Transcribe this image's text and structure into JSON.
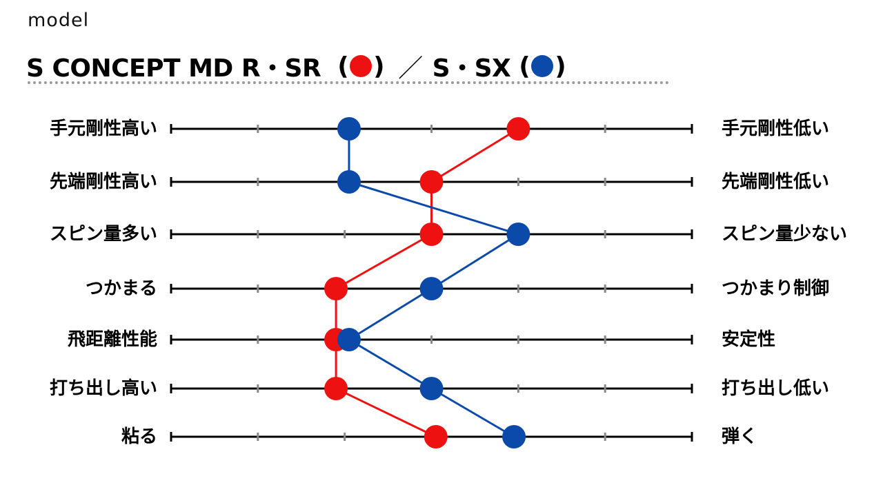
{
  "header": {
    "model_label": "model",
    "title_part1": "S CONCEPT MD R・SR",
    "title_part2": "S・SX",
    "open_paren": "(",
    "close_paren": ")",
    "slash": "／"
  },
  "chart_data": {
    "type": "line",
    "scale_steps": 7,
    "colors": {
      "S CONCEPT MD R・SR": "#ee1111",
      "S・SX": "#0b4aa8"
    },
    "rows": [
      {
        "left": "手元剛性高い",
        "right": "手元剛性低い"
      },
      {
        "left": "先端剛性高い",
        "right": "先端剛性低い"
      },
      {
        "left": "スピン量多い",
        "right": "スピン量少ない"
      },
      {
        "left": "つかまる",
        "right": "つかまり制御"
      },
      {
        "left": "飛距離性能",
        "right": "安定性"
      },
      {
        "left": "打ち出し高い",
        "right": "打ち出し低い"
      },
      {
        "left": "粘る",
        "right": "弾く"
      }
    ],
    "series": [
      {
        "name": "S CONCEPT MD R・SR",
        "color": "#ee1111",
        "values": [
          5.0,
          4.0,
          4.0,
          2.9,
          2.9,
          2.9,
          4.05
        ]
      },
      {
        "name": "S・SX",
        "color": "#0b4aa8",
        "values": [
          3.05,
          3.05,
          5.0,
          4.0,
          3.05,
          4.0,
          4.95
        ]
      }
    ]
  }
}
